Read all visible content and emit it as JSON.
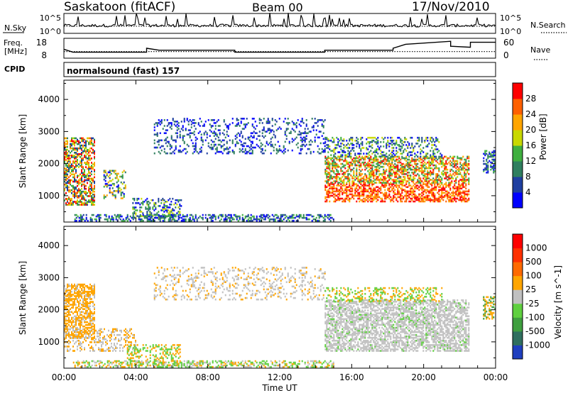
{
  "header": {
    "title": "Saskatoon (fitACF)",
    "beam": "Beam 00",
    "date": "17/Nov/2010"
  },
  "noise_panel": {
    "left_label": "N.Sky",
    "left_ticks": [
      "10^5",
      "10^0"
    ],
    "right_label": "N.Search",
    "right_ticks": [
      "10^5",
      "10^0"
    ]
  },
  "freq_panel": {
    "left_label_line1": "Freq.",
    "left_label_line2": "[MHz]",
    "left_ticks": [
      "18",
      "8"
    ],
    "right_label": "Nave",
    "right_ticks": [
      "60",
      "0"
    ]
  },
  "cpid": {
    "label": "CPID",
    "value": "normalsound (fast) 157"
  },
  "power_panel": {
    "ylabel": "Slant Range [km]",
    "yticks": [
      "4000",
      "3000",
      "2000",
      "1000"
    ],
    "colorbar_label": "Power [dB]",
    "colorbar_ticks": [
      "28",
      "24",
      "20",
      "16",
      "12",
      "8",
      "4"
    ],
    "colors": [
      "#0000ff",
      "#1f3fa0",
      "#2f7f5f",
      "#3faf3f",
      "#c8d800",
      "#ffa500",
      "#ff6000",
      "#ff0000"
    ]
  },
  "velocity_panel": {
    "ylabel": "Slant Range [km]",
    "yticks": [
      "4000",
      "3000",
      "2000",
      "1000"
    ],
    "colorbar_label": "Velocity [m s^-1]",
    "colorbar_ticks": [
      "1000",
      "500",
      "100",
      "25",
      "-25",
      "-100",
      "-500",
      "-1000"
    ],
    "colors": [
      "#1f3fbf",
      "#2f6f5f",
      "#3f9f3f",
      "#5fd03f",
      "#c0c0c0",
      "#ffa500",
      "#ff6a00",
      "#ff3000",
      "#ff0000"
    ]
  },
  "xaxis": {
    "ticks": [
      "00:00",
      "04:00",
      "08:00",
      "12:00",
      "16:00",
      "20:00",
      "00:00"
    ],
    "label": "Time UT"
  },
  "chart_data": {
    "type": "heatmap",
    "x_range_hours": [
      0,
      24
    ],
    "y_range_km": [
      180,
      4600
    ],
    "freq_ylim_mhz": [
      8,
      18
    ],
    "nave_ylim": [
      0,
      60
    ],
    "power_range_db": [
      0,
      30
    ],
    "velocity_range": [
      -1000,
      1000
    ],
    "freq_steps": [
      {
        "t": 0.0,
        "mhz": 12.5
      },
      {
        "t": 0.5,
        "mhz": 11.0
      },
      {
        "t": 4.6,
        "mhz": 11.0
      },
      {
        "t": 4.6,
        "mhz": 13.0
      },
      {
        "t": 5.3,
        "mhz": 12.0
      },
      {
        "t": 9.5,
        "mhz": 12.0
      },
      {
        "t": 9.5,
        "mhz": 11.0
      },
      {
        "t": 14.5,
        "mhz": 11.0
      },
      {
        "t": 14.5,
        "mhz": 12.0
      },
      {
        "t": 18.3,
        "mhz": 12.0
      },
      {
        "t": 18.3,
        "mhz": 13.0
      },
      {
        "t": 19.0,
        "mhz": 15.0
      },
      {
        "t": 21.5,
        "mhz": 16.5
      },
      {
        "t": 21.5,
        "mhz": 14.0
      },
      {
        "t": 22.6,
        "mhz": 13.5
      },
      {
        "t": 22.6,
        "mhz": 16.0
      },
      {
        "t": 24.0,
        "mhz": 16.0
      }
    ],
    "nave_dotted": 20
  }
}
